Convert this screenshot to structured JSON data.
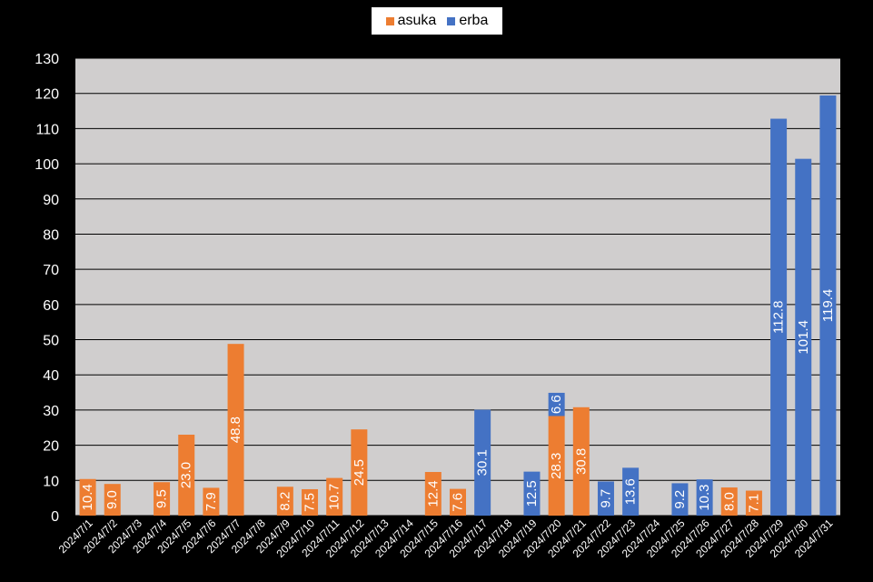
{
  "chart_data": {
    "type": "bar",
    "stacked": true,
    "title": "",
    "xlabel": "",
    "ylabel": "",
    "ylim": [
      0,
      130
    ],
    "yticks": [
      0,
      10,
      20,
      30,
      40,
      50,
      60,
      70,
      80,
      90,
      100,
      110,
      120,
      130
    ],
    "grid": true,
    "legend_position": "top",
    "categories": [
      "2024/7/1",
      "2024/7/2",
      "2024/7/3",
      "2024/7/4",
      "2024/7/5",
      "2024/7/6",
      "2024/7/7",
      "2024/7/8",
      "2024/7/9",
      "2024/7/10",
      "2024/7/11",
      "2024/7/12",
      "2024/7/13",
      "2024/7/14",
      "2024/7/15",
      "2024/7/16",
      "2024/7/17",
      "2024/7/18",
      "2024/7/19",
      "2024/7/20",
      "2024/7/21",
      "2024/7/22",
      "2024/7/23",
      "2024/7/24",
      "2024/7/25",
      "2024/7/26",
      "2024/7/27",
      "2024/7/28",
      "2024/7/29",
      "2024/7/30",
      "2024/7/31"
    ],
    "series": [
      {
        "name": "asuka",
        "color": "#ed7d31",
        "values": [
          10.4,
          9.0,
          null,
          9.5,
          23.0,
          7.9,
          48.8,
          null,
          8.2,
          7.5,
          10.7,
          24.5,
          null,
          null,
          12.4,
          7.6,
          null,
          null,
          null,
          28.3,
          30.8,
          null,
          null,
          null,
          null,
          null,
          8.0,
          7.1,
          null,
          null,
          null
        ]
      },
      {
        "name": "erba",
        "color": "#4472c4",
        "values": [
          null,
          null,
          null,
          null,
          null,
          null,
          null,
          null,
          null,
          null,
          null,
          null,
          null,
          null,
          null,
          null,
          30.1,
          null,
          12.5,
          6.6,
          null,
          9.7,
          13.6,
          null,
          9.2,
          10.3,
          null,
          null,
          112.8,
          101.4,
          119.4
        ]
      }
    ],
    "colors": {
      "background": "#000000",
      "plot_area": "#d0cece",
      "gridline": "#000000",
      "axis_text": "#ffffff",
      "label_text": "#ffffff"
    }
  }
}
